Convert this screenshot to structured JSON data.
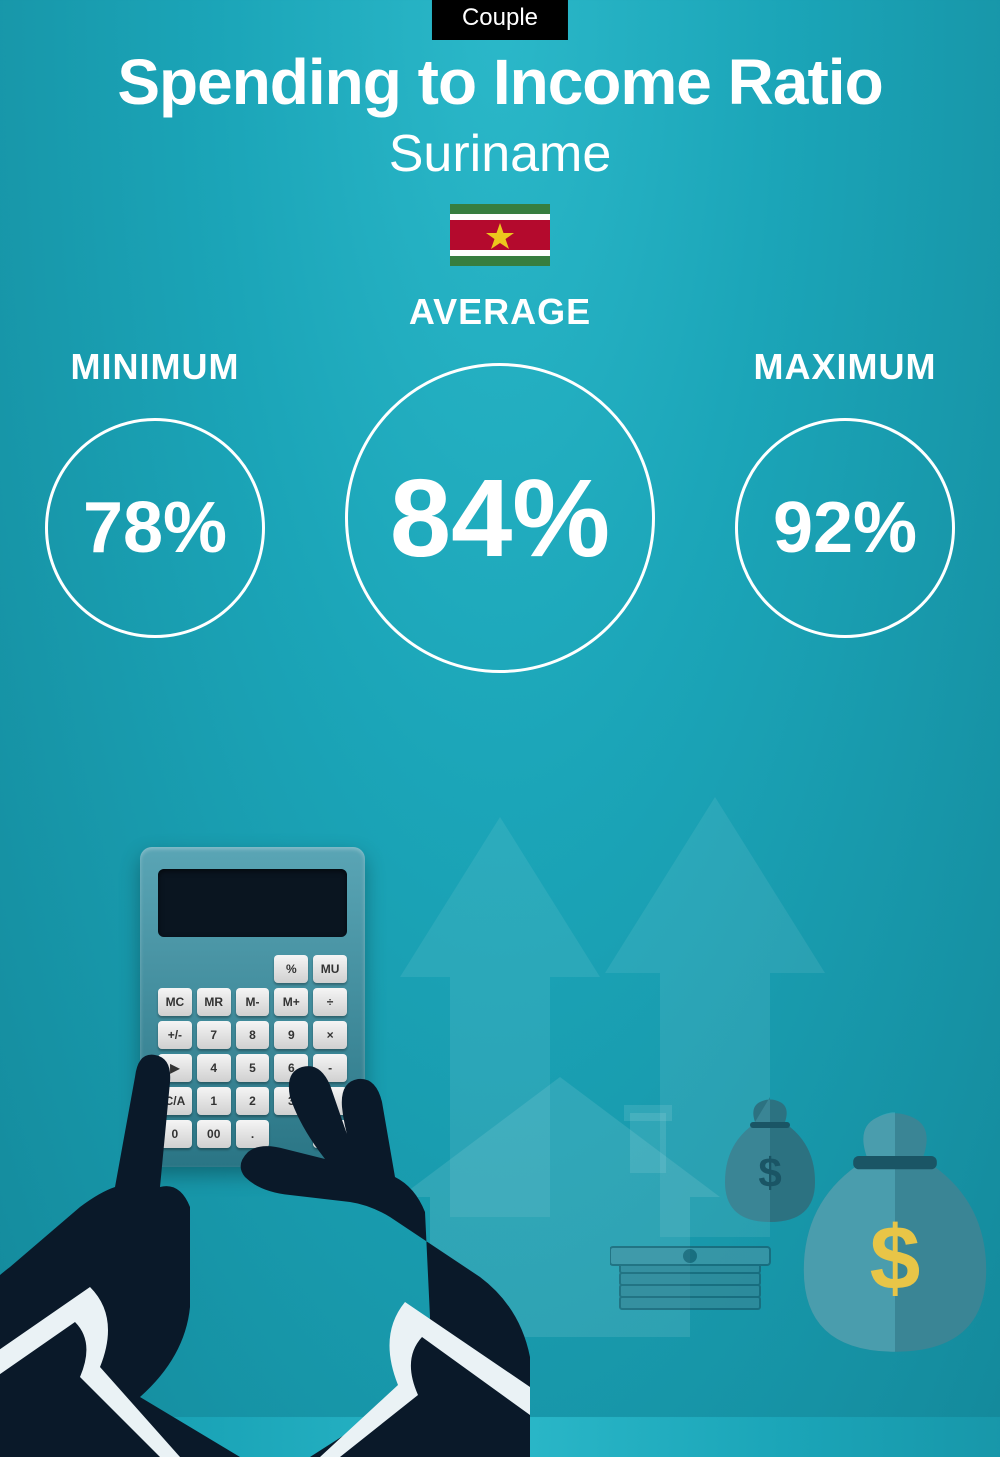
{
  "tag": "Couple",
  "title": "Spending to Income Ratio",
  "country": "Suriname",
  "flag": {
    "stripes": [
      {
        "color": "#377e3f",
        "h": 10
      },
      {
        "color": "#ffffff",
        "h": 6
      },
      {
        "color": "#b40a2d",
        "h": 30
      },
      {
        "color": "#ffffff",
        "h": 6
      },
      {
        "color": "#377e3f",
        "h": 10
      }
    ],
    "star_color": "#ecc81d"
  },
  "stats": {
    "minimum": {
      "label": "MINIMUM",
      "value": "78%"
    },
    "average": {
      "label": "AVERAGE",
      "value": "84%"
    },
    "maximum": {
      "label": "MAXIMUM",
      "value": "92%"
    }
  },
  "styling": {
    "background_gradient": [
      "#2bb8c9",
      "#1ba5b8",
      "#148a9c"
    ],
    "text_color": "#ffffff",
    "circle_border_color": "#ffffff",
    "circle_border_width": 3,
    "tag_bg": "#000000",
    "title_fontsize": 64,
    "subtitle_fontsize": 52,
    "label_fontsize": 36,
    "small_value_fontsize": 72,
    "large_value_fontsize": 110,
    "small_circle_diameter": 220,
    "large_circle_diameter": 310
  },
  "calc_keys": [
    "",
    "",
    "",
    "%",
    "MU",
    "MC",
    "MR",
    "M-",
    "M+",
    "÷",
    "+/-",
    "7",
    "8",
    "9",
    "×",
    "▶",
    "4",
    "5",
    "6",
    "-",
    "C/A",
    "1",
    "2",
    "3",
    "+",
    "0",
    "00",
    ".",
    "",
    "="
  ],
  "illustration": {
    "hand_color": "#0a1929",
    "cuff_color": "#eaf2f5",
    "calc_body_colors": [
      "#5aa5b5",
      "#2a7585"
    ],
    "calc_screen_color": "#0a1520",
    "calc_key_colors": [
      "#f5f5f5",
      "#d0d0d0"
    ],
    "arrow_opacity": 0.08,
    "house_opacity": 0.1,
    "dollar_color": "#e8c547",
    "bag_colors": [
      "#3a8595",
      "#1a5565"
    ]
  }
}
